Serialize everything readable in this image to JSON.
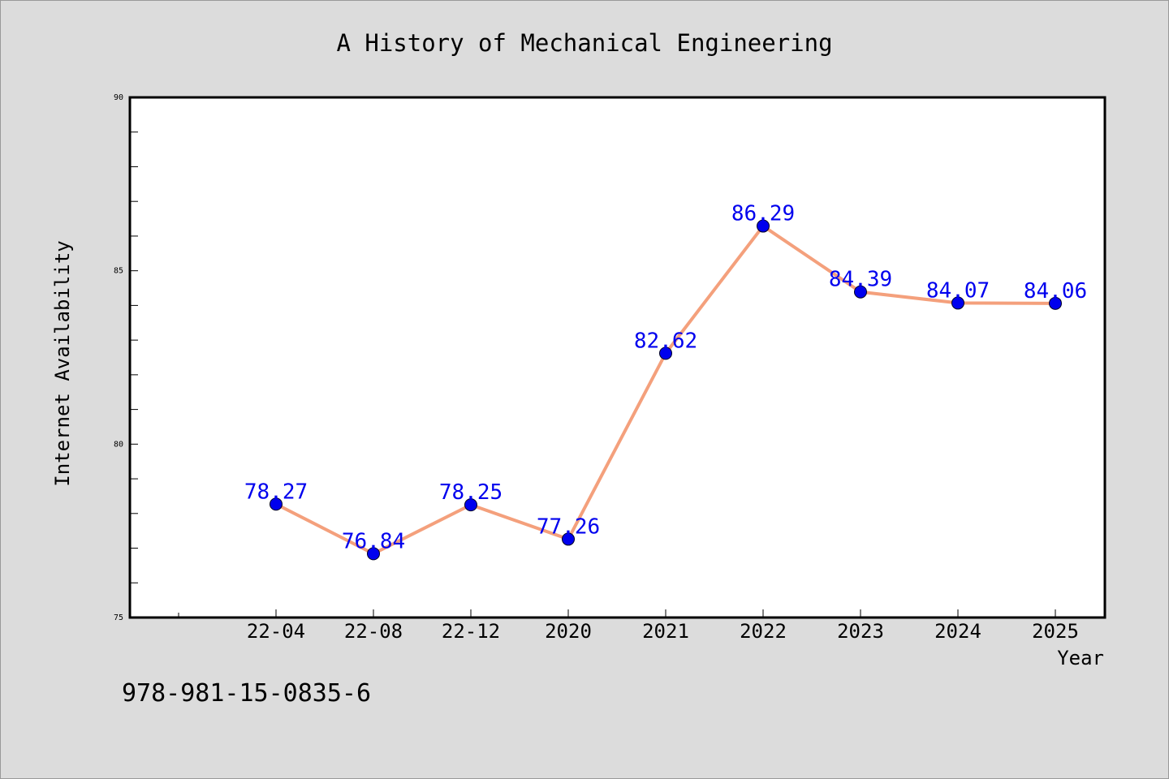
{
  "chart_data": {
    "type": "line",
    "title": "A History of Mechanical Engineering",
    "xlabel": "Year",
    "ylabel": "Internet Availability",
    "categories": [
      "22-04",
      "22-08",
      "22-12",
      "2020",
      "2021",
      "2022",
      "2023",
      "2024",
      "2025"
    ],
    "series": [
      {
        "values": [
          78.27,
          76.84,
          78.25,
          77.26,
          82.62,
          86.29,
          84.39,
          84.07,
          84.06
        ],
        "labels": [
          "78.27",
          "76.84",
          "78.25",
          "77.26",
          "82.62",
          "86.29",
          "84.39",
          "84.07",
          "84.06"
        ],
        "line_color": "#f4a07c",
        "marker_color": "#0000ee",
        "label_color": "#0000ee"
      }
    ],
    "ylim": [
      75,
      90
    ],
    "yticks": [
      "75",
      "80",
      "85",
      "90"
    ],
    "grid": false,
    "legend": false
  },
  "annotation": {
    "isbn": "978-981-15-0835-6"
  },
  "colors": {
    "background": "#dcdcdc",
    "plot_background": "#ffffff",
    "axis": "#000000"
  }
}
